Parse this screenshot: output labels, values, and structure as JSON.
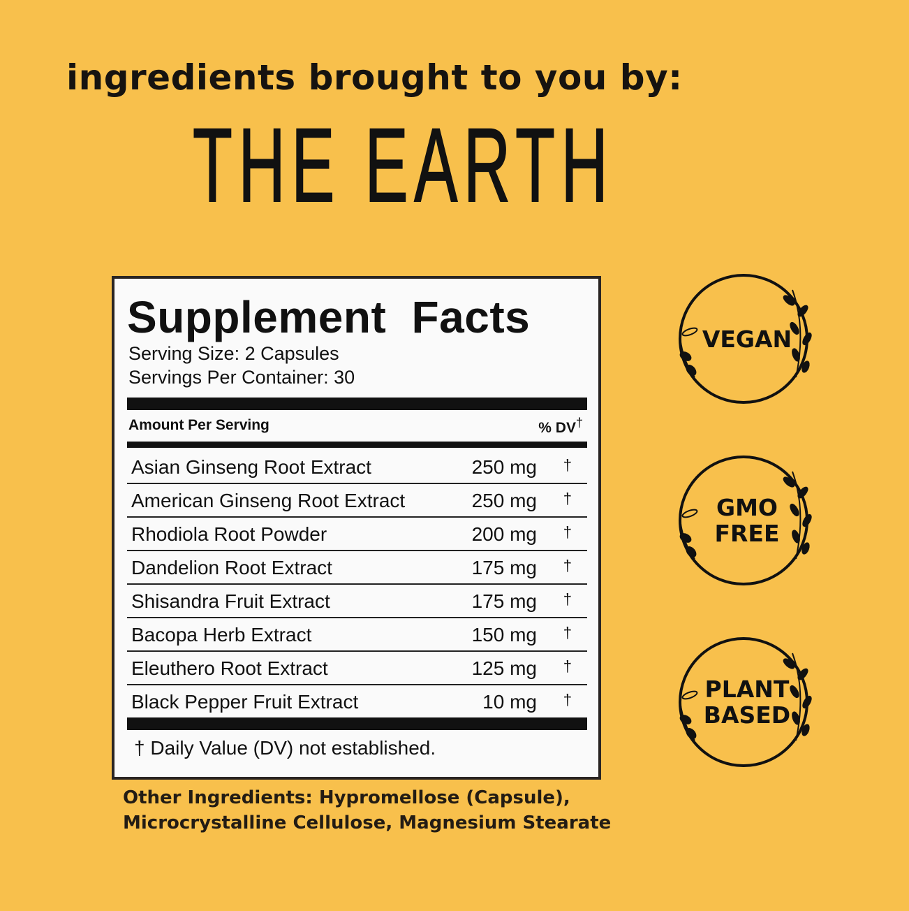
{
  "headline": "ingredients brought to you by:",
  "brand": "THE EARTH",
  "facts": {
    "title": "Supplement Facts",
    "serving_size": "Serving Size: 2 Capsules",
    "servings_per_container": "Servings Per Container: 30",
    "amount_header": "Amount Per Serving",
    "dv_header": "% DV",
    "dagger": "†",
    "rows": [
      {
        "name": "Asian Ginseng Root Extract",
        "amount": "250 mg",
        "dv": "†"
      },
      {
        "name": "American Ginseng Root Extract",
        "amount": "250 mg",
        "dv": "†"
      },
      {
        "name": "Rhodiola Root Powder",
        "amount": "200 mg",
        "dv": "†"
      },
      {
        "name": "Dandelion Root Extract",
        "amount": "175 mg",
        "dv": "†"
      },
      {
        "name": "Shisandra Fruit Extract",
        "amount": "175 mg",
        "dv": "†"
      },
      {
        "name": "Bacopa Herb Extract",
        "amount": "150 mg",
        "dv": "†"
      },
      {
        "name": "Eleuthero Root Extract",
        "amount": "125 mg",
        "dv": "†"
      },
      {
        "name": "Black Pepper Fruit Extract",
        "amount": "10 mg",
        "dv": "†"
      }
    ],
    "footnote": "† Daily Value (DV) not established."
  },
  "other_ingredients": [
    "Other Ingredients: Hypromellose (Capsule),",
    "Microcrystalline Cellulose, Magnesium Stearate"
  ],
  "badges": [
    {
      "lines": [
        "VEGAN"
      ],
      "icon": "laurel-wreath-icon"
    },
    {
      "lines": [
        "GMO",
        "FREE"
      ],
      "icon": "laurel-wreath-icon"
    },
    {
      "lines": [
        "PLANT",
        "BASED"
      ],
      "icon": "laurel-wreath-icon"
    }
  ],
  "colors": {
    "background": "#F8C04C",
    "panel": "#FAFAFA",
    "ink": "#111111"
  }
}
